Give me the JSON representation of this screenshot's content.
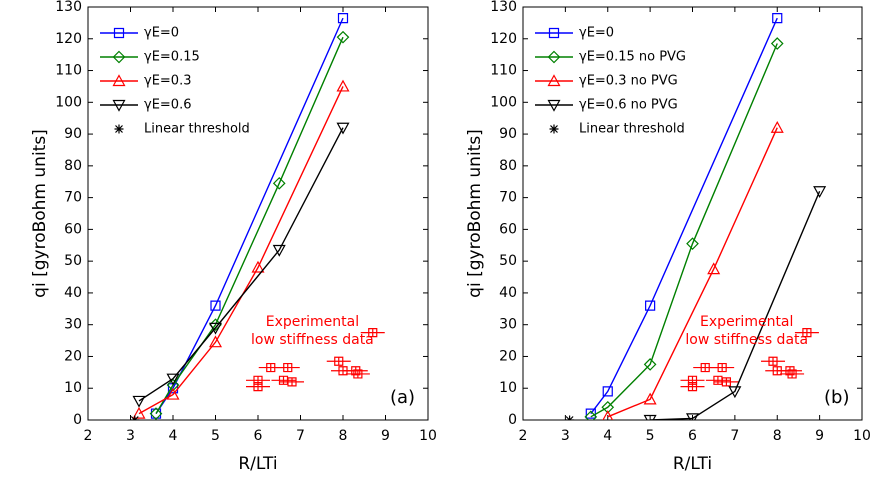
{
  "chart_data": [
    {
      "type": "line",
      "xlabel": "R/LTi",
      "ylabel": "qi [gyroBohm units]",
      "annotation": "Experimental\nlow stiffness data",
      "panel_label": "(a)",
      "xlim": [
        2,
        10
      ],
      "xticks": [
        2,
        3,
        4,
        5,
        6,
        7,
        8,
        9,
        10
      ],
      "ylim": [
        0,
        130
      ],
      "yticks": [
        0,
        10,
        20,
        30,
        40,
        50,
        60,
        70,
        80,
        90,
        100,
        110,
        120,
        130
      ],
      "legend": "upper left",
      "series": [
        {
          "name": "γE=0",
          "color": "#0000ff",
          "marker": "square",
          "x": [
            3.6,
            4,
            5,
            8
          ],
          "values": [
            2,
            10,
            36,
            126.5
          ]
        },
        {
          "name": "γE=0.15",
          "color": "#008000",
          "marker": "diamond",
          "x": [
            3.6,
            4,
            5,
            6.5,
            8
          ],
          "values": [
            2,
            11,
            30,
            74.5,
            120.5
          ]
        },
        {
          "name": "γE=0.3",
          "color": "#ff0000",
          "marker": "triangle-up",
          "x": [
            3.2,
            4,
            5,
            6,
            8
          ],
          "values": [
            2,
            8,
            24.5,
            48,
            105
          ]
        },
        {
          "name": "γE=0.6",
          "color": "#000000",
          "marker": "triangle-down",
          "x": [
            3.2,
            4,
            5,
            6.5,
            8
          ],
          "values": [
            6,
            13,
            29,
            53.5,
            92
          ]
        },
        {
          "name": "Linear threshold",
          "color": "#000000",
          "marker": "star",
          "x": [
            3.1
          ],
          "values": [
            0
          ]
        }
      ],
      "experimental": {
        "color": "#ff0000",
        "x": [
          6,
          6,
          6.3,
          6.6,
          6.7,
          6.8,
          7.9,
          8,
          8.3,
          8.35,
          8.7
        ],
        "values": [
          10.5,
          12.5,
          16.5,
          12.5,
          16.5,
          12,
          18.5,
          15.5,
          15.5,
          14.5,
          27.5
        ]
      }
    },
    {
      "type": "line",
      "xlabel": "R/LTi",
      "ylabel": "qi [gyroBohm units]",
      "annotation": "Experimental\nlow stiffness data",
      "panel_label": "(b)",
      "xlim": [
        2,
        10
      ],
      "xticks": [
        2,
        3,
        4,
        5,
        6,
        7,
        8,
        9,
        10
      ],
      "ylim": [
        0,
        130
      ],
      "yticks": [
        0,
        10,
        20,
        30,
        40,
        50,
        60,
        70,
        80,
        90,
        100,
        110,
        120,
        130
      ],
      "legend": "upper left",
      "series": [
        {
          "name": "γE=0",
          "color": "#0000ff",
          "marker": "square",
          "x": [
            3.6,
            4,
            5,
            8
          ],
          "values": [
            2,
            9,
            36,
            126.5
          ]
        },
        {
          "name": "γE=0.15 no PVG",
          "color": "#008000",
          "marker": "diamond",
          "x": [
            3.6,
            4,
            5,
            6,
            8
          ],
          "values": [
            1,
            4,
            17.5,
            55.5,
            118.5
          ]
        },
        {
          "name": "γE=0.3 no PVG",
          "color": "#ff0000",
          "marker": "triangle-up",
          "x": [
            4,
            5,
            6.5,
            8
          ],
          "values": [
            1,
            6.5,
            47.5,
            92
          ]
        },
        {
          "name": "γE=0.6 no PVG",
          "color": "#000000",
          "marker": "triangle-down",
          "x": [
            5,
            6,
            7,
            9
          ],
          "values": [
            0,
            0.5,
            9,
            72
          ]
        },
        {
          "name": "Linear threshold",
          "color": "#000000",
          "marker": "star",
          "x": [
            3.1
          ],
          "values": [
            0
          ]
        }
      ],
      "experimental": {
        "color": "#ff0000",
        "x": [
          6,
          6,
          6.3,
          6.6,
          6.7,
          6.8,
          7.9,
          8,
          8.3,
          8.35,
          8.7
        ],
        "values": [
          10.5,
          12.5,
          16.5,
          12.5,
          16.5,
          12,
          18.5,
          15.5,
          15.5,
          14.5,
          27.5
        ]
      }
    }
  ]
}
